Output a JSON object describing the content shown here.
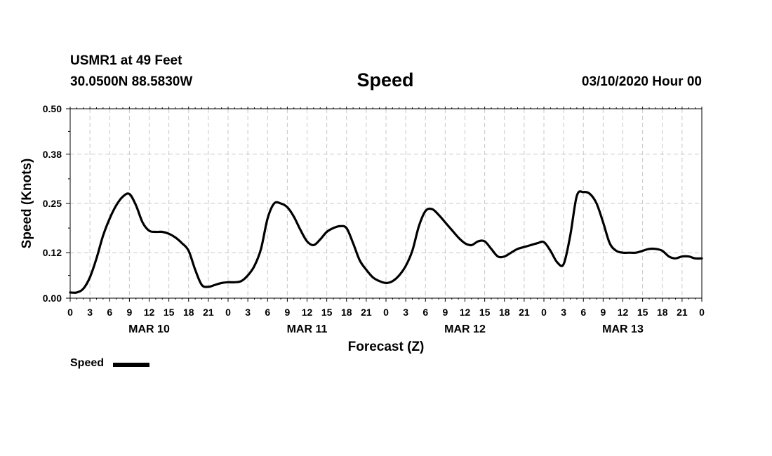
{
  "header": {
    "station": "USMR1 at 49 Feet",
    "coordinates": "30.0500N 88.5830W",
    "title": "Speed",
    "datetime": "03/10/2020 Hour 00"
  },
  "legend": {
    "label": "Speed",
    "color": "#000000"
  },
  "chart_data": {
    "type": "line",
    "title": "Speed",
    "xlabel": "Forecast (Z)",
    "ylabel": "Speed (Knots)",
    "xlim": [
      0,
      96
    ],
    "ylim": [
      0,
      0.5
    ],
    "yticks": [
      0.0,
      0.12,
      0.25,
      0.38,
      0.5
    ],
    "ytick_labels": [
      "0.00",
      "0.12",
      "0.25",
      "0.38",
      "0.50"
    ],
    "xticks": [
      0,
      3,
      6,
      9,
      12,
      15,
      18,
      21,
      24,
      27,
      30,
      33,
      36,
      39,
      42,
      45,
      48,
      51,
      54,
      57,
      60,
      63,
      66,
      69,
      72,
      75,
      78,
      81,
      84,
      87,
      90,
      93,
      96
    ],
    "xtick_labels": [
      "0",
      "3",
      "6",
      "9",
      "12",
      "15",
      "18",
      "21",
      "0",
      "3",
      "6",
      "9",
      "12",
      "15",
      "18",
      "21",
      "0",
      "3",
      "6",
      "9",
      "12",
      "15",
      "18",
      "21",
      "0",
      "3",
      "6",
      "9",
      "12",
      "15",
      "18",
      "21",
      "0"
    ],
    "day_labels": [
      {
        "x": 12,
        "label": "MAR 10"
      },
      {
        "x": 36,
        "label": "MAR 11"
      },
      {
        "x": 60,
        "label": "MAR 12"
      },
      {
        "x": 84,
        "label": "MAR 13"
      }
    ],
    "grid": true,
    "legend_position": "bottom-left",
    "series": [
      {
        "name": "Speed",
        "color": "#000000",
        "x": [
          0,
          1,
          2,
          3,
          4,
          5,
          6,
          7,
          8,
          9,
          10,
          11,
          12,
          13,
          14,
          15,
          16,
          17,
          18,
          19,
          20,
          21,
          22,
          23,
          24,
          25,
          26,
          27,
          28,
          29,
          30,
          31,
          32,
          33,
          34,
          35,
          36,
          37,
          38,
          39,
          40,
          41,
          42,
          43,
          44,
          45,
          46,
          47,
          48,
          49,
          50,
          51,
          52,
          53,
          54,
          55,
          56,
          57,
          58,
          59,
          60,
          61,
          62,
          63,
          64,
          65,
          66,
          67,
          68,
          69,
          70,
          71,
          72,
          73,
          74,
          75,
          76,
          77,
          78,
          79,
          80,
          81,
          82,
          83,
          84,
          85,
          86,
          87,
          88,
          89,
          90,
          91,
          92,
          93,
          94,
          95,
          96
        ],
        "values": [
          0.015,
          0.015,
          0.025,
          0.055,
          0.105,
          0.165,
          0.21,
          0.245,
          0.268,
          0.275,
          0.245,
          0.2,
          0.178,
          0.175,
          0.175,
          0.17,
          0.16,
          0.145,
          0.125,
          0.075,
          0.035,
          0.03,
          0.035,
          0.04,
          0.042,
          0.042,
          0.045,
          0.06,
          0.085,
          0.13,
          0.21,
          0.25,
          0.25,
          0.24,
          0.215,
          0.18,
          0.15,
          0.14,
          0.155,
          0.175,
          0.185,
          0.19,
          0.185,
          0.145,
          0.1,
          0.075,
          0.055,
          0.045,
          0.04,
          0.045,
          0.06,
          0.085,
          0.125,
          0.19,
          0.23,
          0.235,
          0.22,
          0.2,
          0.18,
          0.16,
          0.145,
          0.14,
          0.15,
          0.15,
          0.13,
          0.11,
          0.11,
          0.12,
          0.13,
          0.135,
          0.14,
          0.145,
          0.148,
          0.125,
          0.095,
          0.09,
          0.165,
          0.27,
          0.28,
          0.275,
          0.25,
          0.2,
          0.145,
          0.125,
          0.12,
          0.12,
          0.12,
          0.125,
          0.13,
          0.13,
          0.125,
          0.11,
          0.105,
          0.11,
          0.11,
          0.105,
          0.105
        ]
      }
    ]
  }
}
